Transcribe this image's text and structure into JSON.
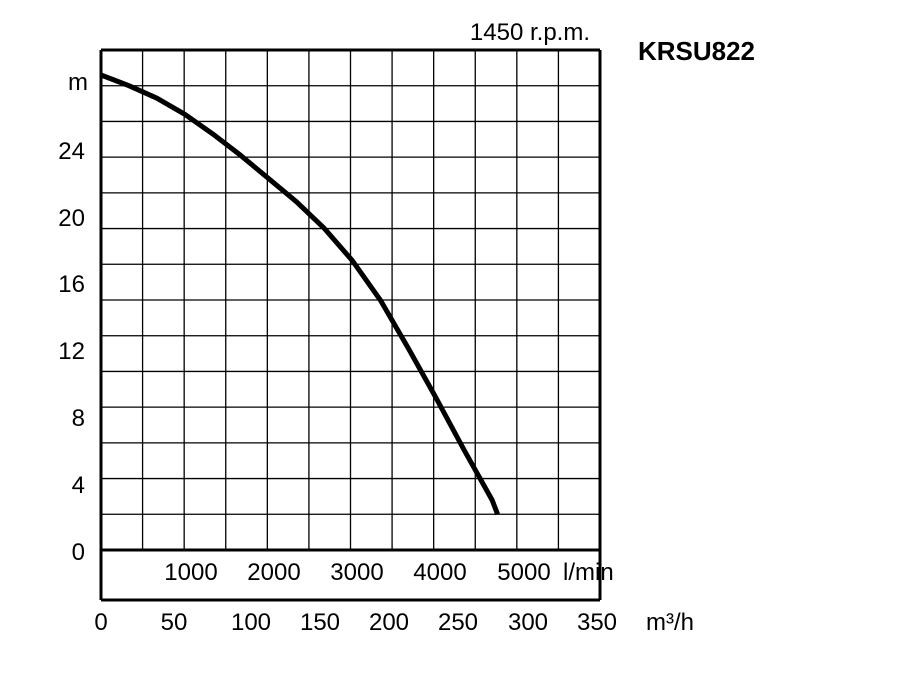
{
  "chart_data": {
    "type": "line",
    "title": "KRSU822",
    "subtitle": "1450 r.p.m.",
    "ylabel": "m",
    "xlabel": "m³/h",
    "xlabel_secondary": "l/min",
    "ylim": [
      0,
      28
    ],
    "xlim": [
      0,
      300
    ],
    "y_ticks": [
      "0",
      "4",
      "8",
      "12",
      "16",
      "20",
      "24"
    ],
    "x_ticks": [
      "0",
      "50",
      "100",
      "150",
      "200",
      "250",
      "300",
      "350"
    ],
    "x_ticks_secondary": [
      "1000",
      "2000",
      "3000",
      "4000",
      "5000"
    ],
    "grid": true,
    "series": [
      {
        "x": [
          0,
          20,
          40,
          60,
          80,
          100,
          120,
          140,
          160,
          180,
          200,
          220,
          240,
          260,
          280,
          284
        ],
        "y": [
          26.6,
          26.0,
          25.3,
          24.4,
          23.3,
          22.1,
          20.8,
          19.5,
          18.0,
          16.2,
          14.0,
          11.3,
          8.5,
          5.6,
          2.8,
          2.0
        ]
      }
    ]
  }
}
